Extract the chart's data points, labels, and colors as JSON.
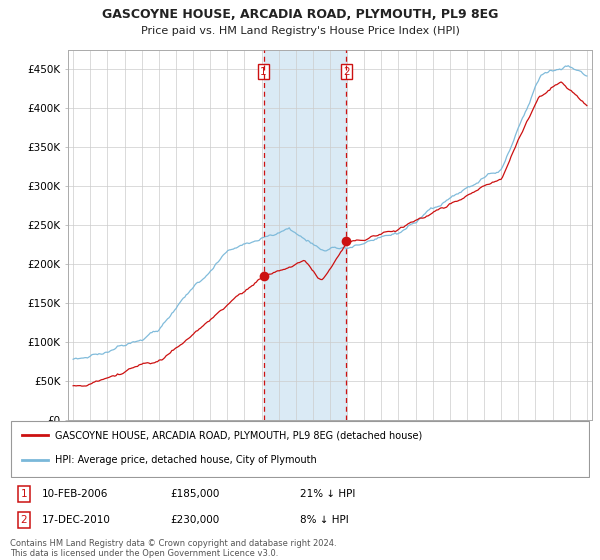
{
  "title": "GASCOYNE HOUSE, ARCADIA ROAD, PLYMOUTH, PL9 8EG",
  "subtitle": "Price paid vs. HM Land Registry's House Price Index (HPI)",
  "footer": "Contains HM Land Registry data © Crown copyright and database right 2024.\nThis data is licensed under the Open Government Licence v3.0.",
  "legend_line1": "GASCOYNE HOUSE, ARCADIA ROAD, PLYMOUTH, PL9 8EG (detached house)",
  "legend_line2": "HPI: Average price, detached house, City of Plymouth",
  "sale1_date": "10-FEB-2006",
  "sale1_price": "£185,000",
  "sale1_note": "21% ↓ HPI",
  "sale2_date": "17-DEC-2010",
  "sale2_price": "£230,000",
  "sale2_note": "8% ↓ HPI",
  "ylim": [
    0,
    475000
  ],
  "yticks": [
    0,
    50000,
    100000,
    150000,
    200000,
    250000,
    300000,
    350000,
    400000,
    450000
  ],
  "ytick_labels": [
    "£0",
    "£50K",
    "£100K",
    "£150K",
    "£200K",
    "£250K",
    "£300K",
    "£350K",
    "£400K",
    "£450K"
  ],
  "hpi_color": "#7ab8d9",
  "sale_color": "#cc1111",
  "sale1_x": 2006.12,
  "sale1_y": 185000,
  "sale2_x": 2010.96,
  "sale2_y": 230000,
  "vline1_x": 2006.12,
  "vline2_x": 2010.96,
  "bg_color": "#ffffff",
  "grid_color": "#cccccc",
  "highlight_bg": "#daeaf5",
  "xmin": 1994.7,
  "xmax": 2025.3
}
